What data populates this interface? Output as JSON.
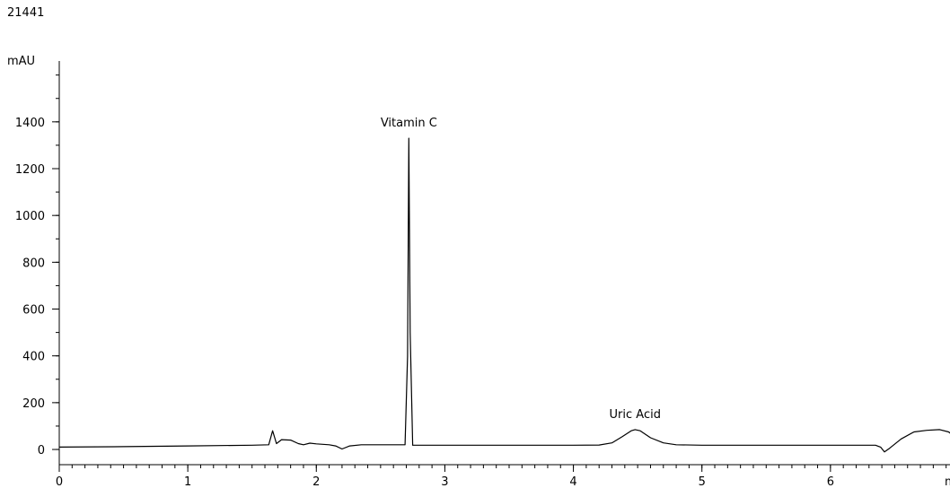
{
  "figure_id": "21441",
  "chart_data": {
    "type": "line",
    "title": "",
    "ylabel": "mAU",
    "xlabel": "min",
    "xlim": [
      0,
      7.0
    ],
    "ylim": [
      -65,
      1660
    ],
    "x_major_ticks": [
      0,
      1,
      2,
      3,
      4,
      5,
      6
    ],
    "x_minor_step": 0.1,
    "y_major_ticks": [
      0,
      200,
      400,
      600,
      800,
      1000,
      1200,
      1400
    ],
    "y_minor_step": 100,
    "grid": false,
    "legend": "none",
    "annotations": [
      {
        "text": "Vitamin C",
        "x": 2.72,
        "y": 1330
      },
      {
        "text": "Uric Acid",
        "x": 4.48,
        "y": 85
      }
    ],
    "series": [
      {
        "color": "#000000",
        "points": [
          [
            0,
            10
          ],
          [
            0.5,
            12
          ],
          [
            1.0,
            15
          ],
          [
            1.5,
            18
          ],
          [
            1.63,
            20
          ],
          [
            1.66,
            80
          ],
          [
            1.69,
            25
          ],
          [
            1.73,
            42
          ],
          [
            1.8,
            40
          ],
          [
            1.86,
            25
          ],
          [
            1.9,
            20
          ],
          [
            1.95,
            27
          ],
          [
            2.0,
            24
          ],
          [
            2.1,
            20
          ],
          [
            2.15,
            15
          ],
          [
            2.2,
            2
          ],
          [
            2.26,
            15
          ],
          [
            2.35,
            20
          ],
          [
            2.5,
            20
          ],
          [
            2.69,
            20
          ],
          [
            2.71,
            400
          ],
          [
            2.72,
            1330
          ],
          [
            2.73,
            500
          ],
          [
            2.75,
            18
          ],
          [
            3.0,
            18
          ],
          [
            3.5,
            18
          ],
          [
            4.0,
            18
          ],
          [
            4.2,
            19
          ],
          [
            4.3,
            28
          ],
          [
            4.38,
            55
          ],
          [
            4.45,
            80
          ],
          [
            4.48,
            85
          ],
          [
            4.52,
            80
          ],
          [
            4.6,
            50
          ],
          [
            4.7,
            28
          ],
          [
            4.8,
            20
          ],
          [
            5.0,
            18
          ],
          [
            5.5,
            18
          ],
          [
            6.0,
            18
          ],
          [
            6.35,
            18
          ],
          [
            6.39,
            10
          ],
          [
            6.42,
            -10
          ],
          [
            6.46,
            5
          ],
          [
            6.55,
            45
          ],
          [
            6.65,
            75
          ],
          [
            6.75,
            82
          ],
          [
            6.85,
            85
          ],
          [
            6.92,
            75
          ],
          [
            7.0,
            40
          ]
        ]
      }
    ]
  }
}
